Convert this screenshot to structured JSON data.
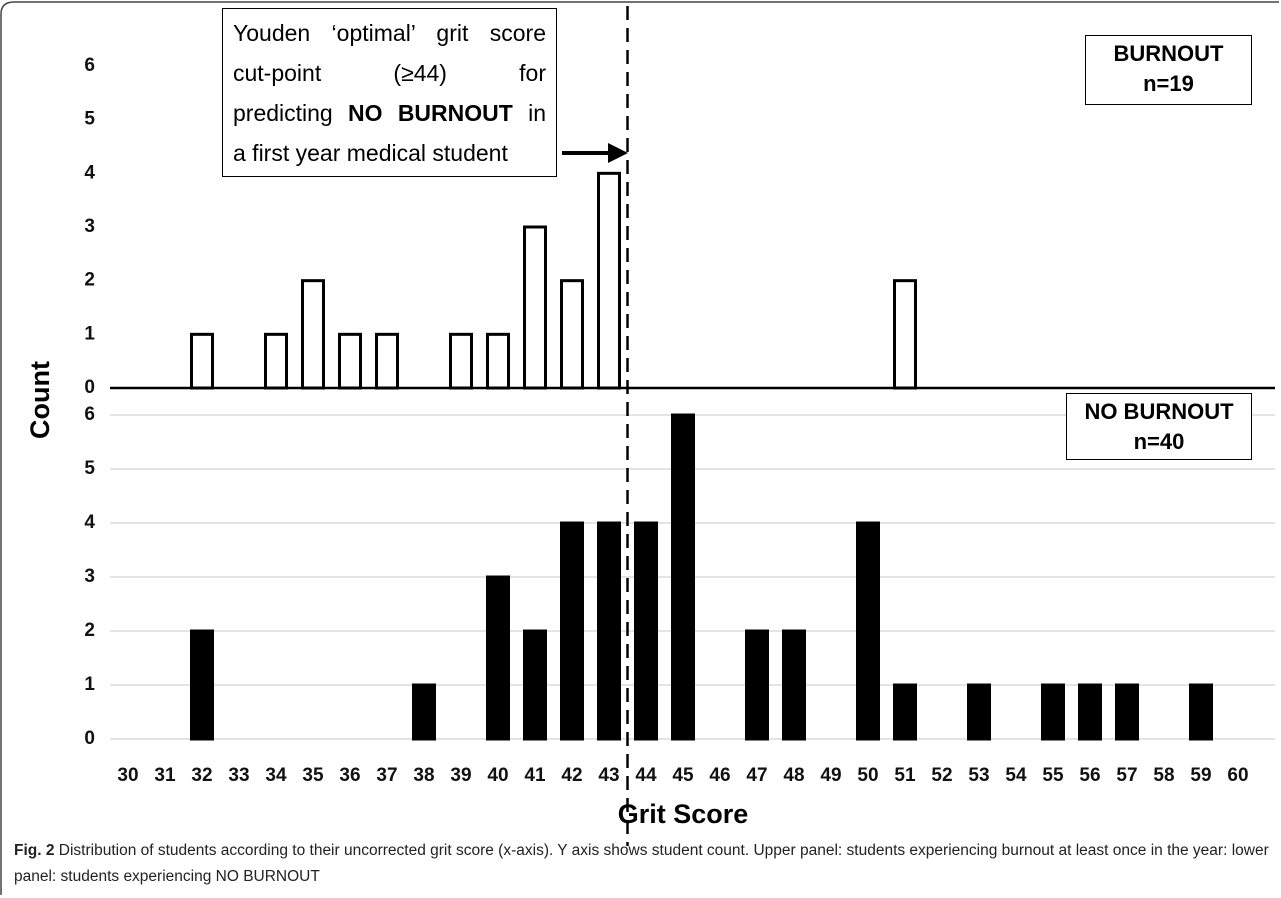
{
  "chart_data": {
    "type": "bar",
    "xlabel": "Grit Score",
    "ylabel": "Count",
    "categories": [
      30,
      31,
      32,
      33,
      34,
      35,
      36,
      37,
      38,
      39,
      40,
      41,
      42,
      43,
      44,
      45,
      46,
      47,
      48,
      49,
      50,
      51,
      52,
      53,
      54,
      55,
      56,
      57,
      58,
      59,
      60
    ],
    "reference_line": 43.5,
    "annotation": {
      "line1": "Youden ‘optimal’ grit score",
      "line2": "cut-point (≥44) for",
      "line3_start": "predicting",
      "line3_bold": "NO BURNOUT",
      "line3_end": "in",
      "line4": "a first year medical student"
    },
    "series": [
      {
        "name": "BURNOUT",
        "note": "n=19",
        "color": "#ffffff",
        "grid": false,
        "ylim": [
          0,
          6
        ],
        "yticks": [
          0,
          1,
          2,
          3,
          4,
          5,
          6
        ],
        "values": [
          0,
          0,
          1,
          0,
          1,
          2,
          1,
          1,
          0,
          1,
          1,
          3,
          2,
          4,
          0,
          0,
          0,
          0,
          0,
          0,
          0,
          2,
          0,
          0,
          0,
          0,
          0,
          0,
          0,
          0,
          0
        ]
      },
      {
        "name": "NO BURNOUT",
        "note": "n=40",
        "color": "#000000",
        "grid": true,
        "ylim": [
          0,
          6
        ],
        "yticks": [
          0,
          1,
          2,
          3,
          4,
          5,
          6
        ],
        "values": [
          0,
          0,
          2,
          0,
          0,
          0,
          0,
          0,
          1,
          0,
          3,
          2,
          4,
          4,
          4,
          6,
          0,
          2,
          2,
          0,
          4,
          1,
          0,
          1,
          0,
          1,
          1,
          1,
          0,
          1,
          0
        ]
      }
    ]
  },
  "caption": {
    "label": "Fig. 2",
    "text": "Distribution of students according to their uncorrected grit score (x-axis). Y axis shows student count. Upper panel: students experiencing burnout at least once in the year: lower panel: students experiencing NO BURNOUT"
  }
}
